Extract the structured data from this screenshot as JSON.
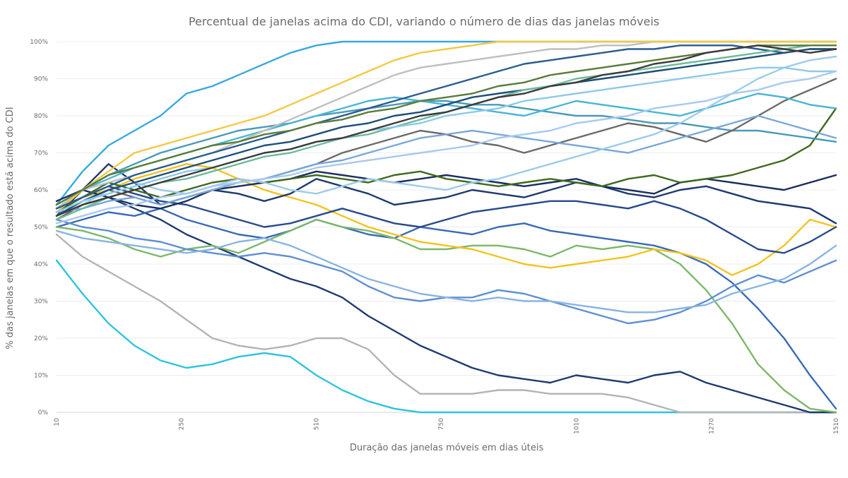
{
  "chart_data": {
    "type": "line",
    "title": "Percentual de janelas acima do CDI, variando o número de dias das janelas móveis",
    "xlabel": "Duração das janelas móveis em dias úteis",
    "ylabel": "% das janelas em que o resultado está acima do CDI",
    "xlim": [
      10,
      1510
    ],
    "ylim": [
      0,
      100
    ],
    "x_ticks": [
      10,
      250,
      510,
      750,
      1010,
      1270,
      1510
    ],
    "y_ticks": [
      0,
      10,
      20,
      30,
      40,
      50,
      60,
      70,
      80,
      90,
      100
    ],
    "y_tick_labels": [
      "0%",
      "10%",
      "20%",
      "30%",
      "40%",
      "50%",
      "60%",
      "70%",
      "80%",
      "90%",
      "100%"
    ],
    "grid": true,
    "legend": "none",
    "x": [
      10,
      60,
      110,
      160,
      210,
      260,
      310,
      360,
      410,
      460,
      510,
      560,
      610,
      660,
      710,
      760,
      810,
      860,
      910,
      960,
      1010,
      1060,
      1110,
      1160,
      1210,
      1260,
      1310,
      1360,
      1410,
      1460,
      1510
    ],
    "series": [
      {
        "name": "s1",
        "color": "#3aa8e0",
        "values": [
          56,
          65,
          72,
          76,
          80,
          86,
          88,
          91,
          94,
          97,
          99,
          100,
          100,
          100,
          100,
          100,
          100,
          100,
          100,
          100,
          100,
          100,
          100,
          100,
          100,
          100,
          100,
          100,
          100,
          100,
          100
        ]
      },
      {
        "name": "s2",
        "color": "#2ec4dd",
        "values": [
          41,
          32,
          24,
          18,
          14,
          12,
          13,
          15,
          16,
          15,
          10,
          6,
          3,
          1,
          0,
          0,
          0,
          0,
          0,
          0,
          0,
          0,
          0,
          0,
          0,
          0,
          0,
          0,
          0,
          0,
          0
        ]
      },
      {
        "name": "s3",
        "color": "#b4b4b4",
        "values": [
          48,
          42,
          38,
          34,
          30,
          25,
          20,
          18,
          17,
          18,
          20,
          20,
          17,
          10,
          5,
          5,
          5,
          6,
          6,
          5,
          5,
          5,
          4,
          2,
          0,
          0,
          0,
          0,
          0,
          0,
          0
        ]
      },
      {
        "name": "s4",
        "color": "#1f3a6e",
        "values": [
          52,
          56,
          58,
          55,
          52,
          48,
          45,
          42,
          39,
          36,
          34,
          31,
          26,
          22,
          18,
          15,
          12,
          10,
          9,
          8,
          10,
          9,
          8,
          10,
          11,
          8,
          6,
          4,
          2,
          0,
          0
        ]
      },
      {
        "name": "s5",
        "color": "#3a6ab5",
        "values": [
          50,
          52,
          54,
          53,
          55,
          52,
          50,
          48,
          47,
          49,
          52,
          50,
          48,
          47,
          50,
          49,
          48,
          50,
          51,
          49,
          48,
          47,
          46,
          45,
          43,
          40,
          35,
          28,
          20,
          10,
          1
        ]
      },
      {
        "name": "s6",
        "color": "#7cb86a",
        "values": [
          50,
          49,
          47,
          44,
          42,
          44,
          45,
          43,
          46,
          49,
          52,
          50,
          49,
          47,
          44,
          44,
          45,
          45,
          44,
          42,
          45,
          44,
          45,
          44,
          40,
          33,
          24,
          13,
          6,
          1,
          0
        ]
      },
      {
        "name": "s7",
        "color": "#f3c31e",
        "values": [
          54,
          58,
          60,
          63,
          65,
          67,
          66,
          63,
          60,
          58,
          56,
          53,
          50,
          48,
          46,
          45,
          44,
          42,
          40,
          39,
          40,
          41,
          42,
          44,
          43,
          41,
          37,
          40,
          45,
          52,
          50
        ]
      },
      {
        "name": "s8",
        "color": "#5f8fd0",
        "values": [
          52,
          50,
          49,
          47,
          46,
          44,
          43,
          42,
          43,
          42,
          40,
          38,
          34,
          31,
          30,
          31,
          31,
          33,
          32,
          30,
          28,
          26,
          24,
          25,
          27,
          30,
          34,
          37,
          35,
          38,
          41
        ]
      },
      {
        "name": "s9",
        "color": "#8ab4e0",
        "values": [
          49,
          47,
          46,
          45,
          44,
          43,
          44,
          46,
          47,
          45,
          42,
          39,
          36,
          34,
          32,
          31,
          30,
          31,
          30,
          30,
          29,
          28,
          27,
          27,
          28,
          29,
          32,
          34,
          36,
          40,
          45
        ]
      },
      {
        "name": "s10",
        "color": "#1f3a6e",
        "values": [
          53,
          60,
          67,
          62,
          56,
          58,
          60,
          59,
          57,
          59,
          63,
          61,
          59,
          56,
          57,
          58,
          60,
          59,
          58,
          60,
          62,
          61,
          59,
          58,
          60,
          61,
          59,
          57,
          56,
          55,
          51
        ]
      },
      {
        "name": "s11",
        "color": "#274a8a",
        "values": [
          55,
          58,
          61,
          59,
          57,
          56,
          54,
          52,
          50,
          51,
          53,
          55,
          53,
          51,
          50,
          52,
          54,
          55,
          56,
          57,
          57,
          56,
          55,
          57,
          55,
          52,
          48,
          44,
          43,
          46,
          50
        ]
      },
      {
        "name": "s12",
        "color": "#1a2f5e",
        "values": [
          57,
          60,
          58,
          56,
          55,
          57,
          60,
          61,
          62,
          63,
          65,
          64,
          63,
          62,
          63,
          64,
          63,
          62,
          61,
          62,
          63,
          61,
          60,
          59,
          62,
          63,
          62,
          61,
          60,
          62,
          64
        ]
      },
      {
        "name": "s13",
        "color": "#3f6a1e",
        "values": [
          54,
          58,
          62,
          60,
          58,
          60,
          62,
          63,
          62,
          63,
          64,
          63,
          62,
          64,
          65,
          63,
          62,
          61,
          62,
          63,
          62,
          61,
          63,
          64,
          62,
          63,
          64,
          66,
          68,
          72,
          82
        ]
      },
      {
        "name": "s14",
        "color": "#4a9ab8",
        "values": [
          56,
          60,
          64,
          67,
          70,
          72,
          74,
          76,
          77,
          78,
          80,
          81,
          82,
          83,
          84,
          84,
          83,
          83,
          82,
          81,
          80,
          80,
          79,
          78,
          78,
          77,
          76,
          76,
          75,
          74,
          73
        ]
      },
      {
        "name": "s15",
        "color": "#6a6a6a",
        "values": [
          52,
          56,
          60,
          58,
          56,
          58,
          60,
          62,
          63,
          65,
          67,
          70,
          72,
          74,
          76,
          75,
          73,
          72,
          70,
          72,
          74,
          76,
          78,
          77,
          75,
          73,
          76,
          80,
          84,
          87,
          90
        ]
      },
      {
        "name": "s16",
        "color": "#4ab5d6",
        "values": [
          55,
          60,
          63,
          66,
          68,
          70,
          72,
          74,
          76,
          78,
          80,
          82,
          84,
          85,
          84,
          83,
          82,
          81,
          80,
          82,
          84,
          83,
          82,
          81,
          80,
          82,
          84,
          86,
          85,
          83,
          82
        ]
      },
      {
        "name": "s17",
        "color": "#7aa8d8",
        "values": [
          54,
          55,
          57,
          58,
          56,
          58,
          60,
          62,
          63,
          65,
          67,
          68,
          70,
          72,
          74,
          75,
          76,
          75,
          74,
          73,
          72,
          71,
          70,
          72,
          74,
          76,
          78,
          80,
          78,
          76,
          74
        ]
      },
      {
        "name": "s18",
        "color": "#9ecce8",
        "values": [
          53,
          56,
          60,
          62,
          60,
          59,
          61,
          63,
          62,
          60,
          59,
          61,
          63,
          62,
          61,
          60,
          62,
          63,
          65,
          67,
          69,
          71,
          73,
          75,
          78,
          82,
          86,
          90,
          93,
          95,
          96
        ]
      },
      {
        "name": "s19",
        "color": "#bfbfbf",
        "values": [
          55,
          60,
          62,
          64,
          66,
          68,
          70,
          73,
          76,
          79,
          82,
          85,
          88,
          91,
          93,
          94,
          95,
          96,
          97,
          98,
          98,
          99,
          99,
          100,
          100,
          100,
          100,
          100,
          100,
          100,
          100
        ]
      },
      {
        "name": "s20",
        "color": "#f5c842",
        "values": [
          54,
          60,
          65,
          70,
          72,
          74,
          76,
          78,
          80,
          83,
          86,
          89,
          92,
          95,
          97,
          98,
          99,
          100,
          100,
          100,
          100,
          100,
          100,
          100,
          100,
          100,
          100,
          100,
          100,
          100,
          100
        ]
      },
      {
        "name": "s21",
        "color": "#2a5d8f",
        "values": [
          55,
          58,
          61,
          64,
          66,
          68,
          70,
          72,
          74,
          76,
          78,
          80,
          82,
          84,
          86,
          88,
          90,
          92,
          94,
          95,
          96,
          97,
          98,
          98,
          99,
          99,
          99,
          98,
          97,
          98,
          98
        ]
      },
      {
        "name": "s22",
        "color": "#1e4f7a",
        "values": [
          53,
          57,
          60,
          62,
          64,
          66,
          68,
          70,
          72,
          73,
          75,
          77,
          78,
          80,
          81,
          83,
          85,
          86,
          87,
          88,
          89,
          90,
          91,
          92,
          93,
          94,
          95,
          96,
          97,
          98,
          98
        ]
      },
      {
        "name": "s23",
        "color": "#6fbb9a",
        "values": [
          52,
          55,
          58,
          60,
          62,
          63,
          65,
          67,
          69,
          70,
          72,
          74,
          75,
          77,
          79,
          81,
          83,
          85,
          87,
          88,
          90,
          91,
          92,
          93,
          94,
          95,
          96,
          97,
          98,
          99,
          99
        ]
      },
      {
        "name": "s24",
        "color": "#5a7d3a",
        "values": [
          56,
          60,
          64,
          66,
          68,
          70,
          72,
          73,
          75,
          76,
          78,
          79,
          81,
          82,
          84,
          85,
          86,
          88,
          89,
          91,
          92,
          93,
          94,
          95,
          96,
          97,
          98,
          99,
          99,
          99,
          99
        ]
      },
      {
        "name": "s25",
        "color": "#8fc8ea",
        "values": [
          54,
          57,
          59,
          61,
          63,
          65,
          66,
          68,
          70,
          71,
          73,
          74,
          76,
          77,
          78,
          80,
          81,
          82,
          84,
          85,
          86,
          87,
          88,
          89,
          90,
          91,
          92,
          93,
          93,
          92,
          92
        ]
      },
      {
        "name": "s26",
        "color": "#3c3c3c",
        "values": [
          53,
          56,
          58,
          60,
          62,
          64,
          66,
          68,
          70,
          71,
          73,
          74,
          76,
          78,
          80,
          81,
          83,
          85,
          86,
          88,
          89,
          91,
          92,
          94,
          95,
          97,
          98,
          99,
          98,
          97,
          98
        ]
      },
      {
        "name": "s27",
        "color": "#a9c9ee",
        "values": [
          51,
          53,
          55,
          56,
          58,
          59,
          61,
          62,
          63,
          64,
          66,
          67,
          68,
          69,
          70,
          71,
          72,
          74,
          75,
          76,
          78,
          79,
          80,
          82,
          83,
          84,
          86,
          87,
          89,
          90,
          92
        ]
      }
    ]
  }
}
